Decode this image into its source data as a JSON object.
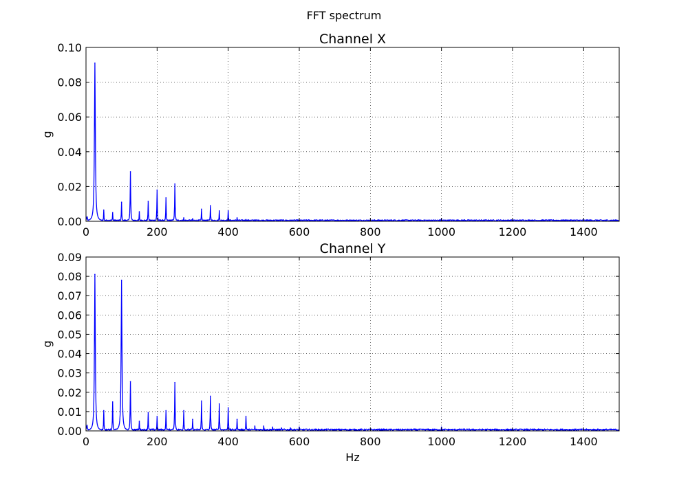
{
  "figure": {
    "suptitle": "FFT spectrum"
  },
  "chart_data": [
    {
      "type": "line",
      "title": "Channel X",
      "xlabel": "",
      "ylabel": "g",
      "xlim": [
        0,
        1500
      ],
      "ylim": [
        0,
        0.1
      ],
      "xticks": [
        "0",
        "200",
        "400",
        "600",
        "800",
        "1000",
        "1200",
        "1400"
      ],
      "xtick_values": [
        0,
        200,
        400,
        600,
        800,
        1000,
        1200,
        1400
      ],
      "yticks": [
        "0.00",
        "0.02",
        "0.04",
        "0.06",
        "0.08",
        "0.10"
      ],
      "ytick_values": [
        0,
        0.02,
        0.04,
        0.06,
        0.08,
        0.1
      ],
      "grid": true,
      "color": "#0000ff",
      "noise_floor": 0.0006,
      "peaks": [
        {
          "x": 25,
          "y": 0.091
        },
        {
          "x": 50,
          "y": 0.0065
        },
        {
          "x": 75,
          "y": 0.005
        },
        {
          "x": 100,
          "y": 0.011
        },
        {
          "x": 125,
          "y": 0.0285
        },
        {
          "x": 150,
          "y": 0.0055
        },
        {
          "x": 175,
          "y": 0.0115
        },
        {
          "x": 200,
          "y": 0.018
        },
        {
          "x": 225,
          "y": 0.0135
        },
        {
          "x": 250,
          "y": 0.0215
        },
        {
          "x": 275,
          "y": 0.002
        },
        {
          "x": 300,
          "y": 0.0015
        },
        {
          "x": 325,
          "y": 0.007
        },
        {
          "x": 350,
          "y": 0.009
        },
        {
          "x": 375,
          "y": 0.006
        },
        {
          "x": 400,
          "y": 0.006
        },
        {
          "x": 425,
          "y": 0.002
        },
        {
          "x": 450,
          "y": 0.001
        },
        {
          "x": 475,
          "y": 0.0008
        },
        {
          "x": 550,
          "y": 0.0007
        },
        {
          "x": 600,
          "y": 0.0007
        },
        {
          "x": 625,
          "y": 0.0008
        },
        {
          "x": 650,
          "y": 0.0007
        },
        {
          "x": 1000,
          "y": 0.0015
        },
        {
          "x": 1065,
          "y": 0.0008
        }
      ]
    },
    {
      "type": "line",
      "title": "Channel Y",
      "xlabel": "Hz",
      "ylabel": "g",
      "xlim": [
        0,
        1500
      ],
      "ylim": [
        0,
        0.09
      ],
      "xticks": [
        "0",
        "200",
        "400",
        "600",
        "800",
        "1000",
        "1200",
        "1400"
      ],
      "xtick_values": [
        0,
        200,
        400,
        600,
        800,
        1000,
        1200,
        1400
      ],
      "yticks": [
        "0.00",
        "0.01",
        "0.02",
        "0.03",
        "0.04",
        "0.05",
        "0.06",
        "0.07",
        "0.08",
        "0.09"
      ],
      "ytick_values": [
        0,
        0.01,
        0.02,
        0.03,
        0.04,
        0.05,
        0.06,
        0.07,
        0.08,
        0.09
      ],
      "grid": true,
      "color": "#0000ff",
      "noise_floor": 0.0007,
      "peaks": [
        {
          "x": 25,
          "y": 0.081
        },
        {
          "x": 50,
          "y": 0.0105
        },
        {
          "x": 75,
          "y": 0.015
        },
        {
          "x": 100,
          "y": 0.078
        },
        {
          "x": 125,
          "y": 0.0255
        },
        {
          "x": 150,
          "y": 0.005
        },
        {
          "x": 175,
          "y": 0.0095
        },
        {
          "x": 200,
          "y": 0.0075
        },
        {
          "x": 225,
          "y": 0.0105
        },
        {
          "x": 250,
          "y": 0.025
        },
        {
          "x": 275,
          "y": 0.0105
        },
        {
          "x": 300,
          "y": 0.006
        },
        {
          "x": 325,
          "y": 0.0155
        },
        {
          "x": 350,
          "y": 0.018
        },
        {
          "x": 375,
          "y": 0.014
        },
        {
          "x": 400,
          "y": 0.012
        },
        {
          "x": 425,
          "y": 0.006
        },
        {
          "x": 450,
          "y": 0.0075
        },
        {
          "x": 475,
          "y": 0.0025
        },
        {
          "x": 500,
          "y": 0.0025
        },
        {
          "x": 525,
          "y": 0.002
        },
        {
          "x": 550,
          "y": 0.0015
        },
        {
          "x": 575,
          "y": 0.0015
        },
        {
          "x": 600,
          "y": 0.002
        },
        {
          "x": 1000,
          "y": 0.002
        },
        {
          "x": 1065,
          "y": 0.001
        }
      ]
    }
  ]
}
